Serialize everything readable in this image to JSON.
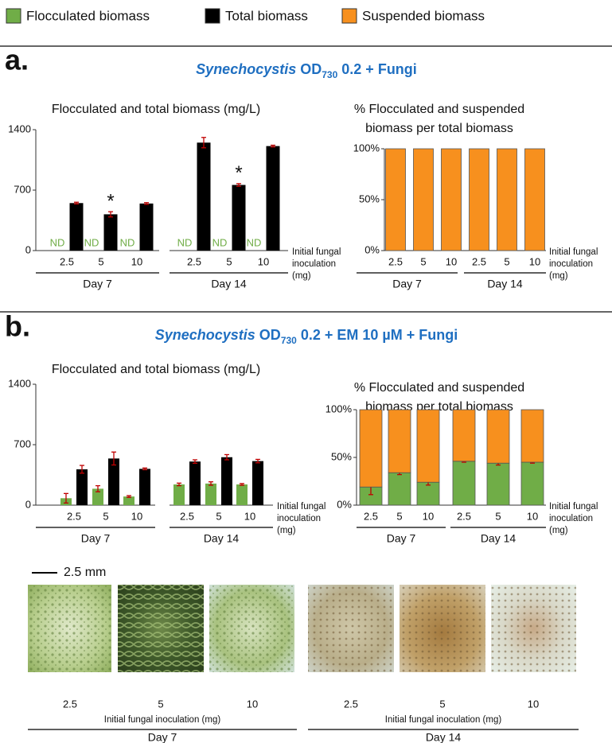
{
  "legend": [
    {
      "name": "Flocculated biomass",
      "color": "#70ad47"
    },
    {
      "name": "Total biomass",
      "color": "#000000"
    },
    {
      "name": "Suspended biomass",
      "color": "#f7901e"
    }
  ],
  "panels": [
    {
      "label": "a.",
      "title_parts": [
        {
          "text": "Synechocystis",
          "style": "italic"
        },
        {
          "text": " OD"
        },
        {
          "text": "730",
          "style": "sub"
        },
        {
          "text": " 0.2 + Fungi"
        }
      ],
      "color": "#1f6fc1"
    },
    {
      "label": "b.",
      "title_parts": [
        {
          "text": "Synechocystis",
          "style": "italic"
        },
        {
          "text": " OD"
        },
        {
          "text": "730",
          "style": "sub"
        },
        {
          "text": " 0.2 + EM 10 µM + Fungi"
        }
      ],
      "color": "#1f6fc1"
    }
  ],
  "chart_data": [
    {
      "type": "bar",
      "title": "Flocculated and total biomass (mg/L)",
      "categories": [
        "2.5",
        "5",
        "10",
        "2.5",
        "5",
        "10"
      ],
      "groups": [
        "Day 7",
        "Day 14"
      ],
      "xlabel": [
        "Initial fungal",
        "inoculation",
        "(mg)"
      ],
      "ylim": [
        0,
        1400
      ],
      "yticks": [
        0,
        700,
        1400
      ],
      "error_color": "#c00000",
      "series": [
        {
          "name": "Flocculated biomass",
          "color": "#70ad47",
          "values": [
            null,
            null,
            null,
            null,
            null,
            null
          ],
          "value_labels": [
            "ND",
            "ND",
            "ND",
            "ND",
            "ND",
            "ND"
          ]
        },
        {
          "name": "Total biomass",
          "color": "#000000",
          "values": [
            550,
            420,
            545,
            1250,
            760,
            1210
          ],
          "errors": [
            10,
            30,
            10,
            60,
            15,
            10
          ],
          "significance": [
            null,
            "*",
            null,
            null,
            "*",
            null
          ]
        }
      ]
    },
    {
      "type": "stacked_bar",
      "title": [
        "% Flocculated and suspended",
        "biomass per total biomass"
      ],
      "categories": [
        "2.5",
        "5",
        "10",
        "2.5",
        "5",
        "10"
      ],
      "groups": [
        "Day 7",
        "Day 14"
      ],
      "xlabel": [
        "Initial fungal",
        "inoculation",
        "(mg)"
      ],
      "ylim": [
        0,
        100
      ],
      "yticks": [
        {
          "value": 0,
          "label": "0%"
        },
        {
          "value": 50,
          "label": "50%"
        },
        {
          "value": 100,
          "label": "100%"
        }
      ],
      "series": [
        {
          "color": "#70ad47",
          "values": [
            0,
            0,
            0,
            0,
            0,
            0
          ]
        },
        {
          "name": "Suspended biomass",
          "color": "#f7901e",
          "values": [
            100,
            100,
            100,
            100,
            100,
            100
          ]
        }
      ]
    },
    {
      "type": "bar",
      "title": "Flocculated and total biomass (mg/L)",
      "categories": [
        "2.5",
        "5",
        "10",
        "2.5",
        "5",
        "10"
      ],
      "groups": [
        "Day 7",
        "Day 14"
      ],
      "xlabel": [
        "Initial fungal",
        "inoculation",
        "(mg)"
      ],
      "ylim": [
        0,
        1400
      ],
      "yticks": [
        0,
        700,
        1400
      ],
      "error_color": "#c00000",
      "series": [
        {
          "color": "#70ad47",
          "values": [
            80,
            190,
            100,
            240,
            250,
            240
          ],
          "errors": [
            55,
            35,
            10,
            15,
            20,
            10
          ]
        },
        {
          "color": "#000000",
          "values": [
            415,
            540,
            420,
            505,
            555,
            510
          ],
          "errors": [
            45,
            75,
            10,
            20,
            30,
            20
          ]
        }
      ]
    },
    {
      "type": "stacked_bar",
      "title": [
        "% Flocculated and suspended",
        "biomass per total biomass"
      ],
      "categories": [
        "2.5",
        "5",
        "10",
        "2.5",
        "5",
        "10"
      ],
      "groups": [
        "Day 7",
        "Day 14"
      ],
      "xlabel": [
        "Initial fungal",
        "inoculation",
        "(mg)"
      ],
      "ylim": [
        0,
        100
      ],
      "yticks": [
        {
          "value": 0,
          "label": "0%"
        },
        {
          "value": 50,
          "label": "50%"
        },
        {
          "value": 100,
          "label": "100%"
        }
      ],
      "error_color": "#c00000",
      "series": [
        {
          "color": "#70ad47",
          "values": [
            19,
            34,
            24,
            46,
            44,
            45
          ],
          "errors": [
            8,
            2,
            3,
            1,
            2,
            1
          ]
        },
        {
          "color": "#f7901e",
          "values": [
            81,
            66,
            76,
            54,
            56,
            55
          ]
        }
      ]
    }
  ],
  "photos": {
    "scale_bar": "2.5 mm",
    "xlabel": "Initial fungal inoculation (mg)",
    "groups": [
      {
        "name": "Day 7",
        "labels": [
          "2.5",
          "5",
          "10"
        ]
      },
      {
        "name": "Day 14",
        "labels": [
          "2.5",
          "5",
          "10"
        ]
      }
    ]
  }
}
